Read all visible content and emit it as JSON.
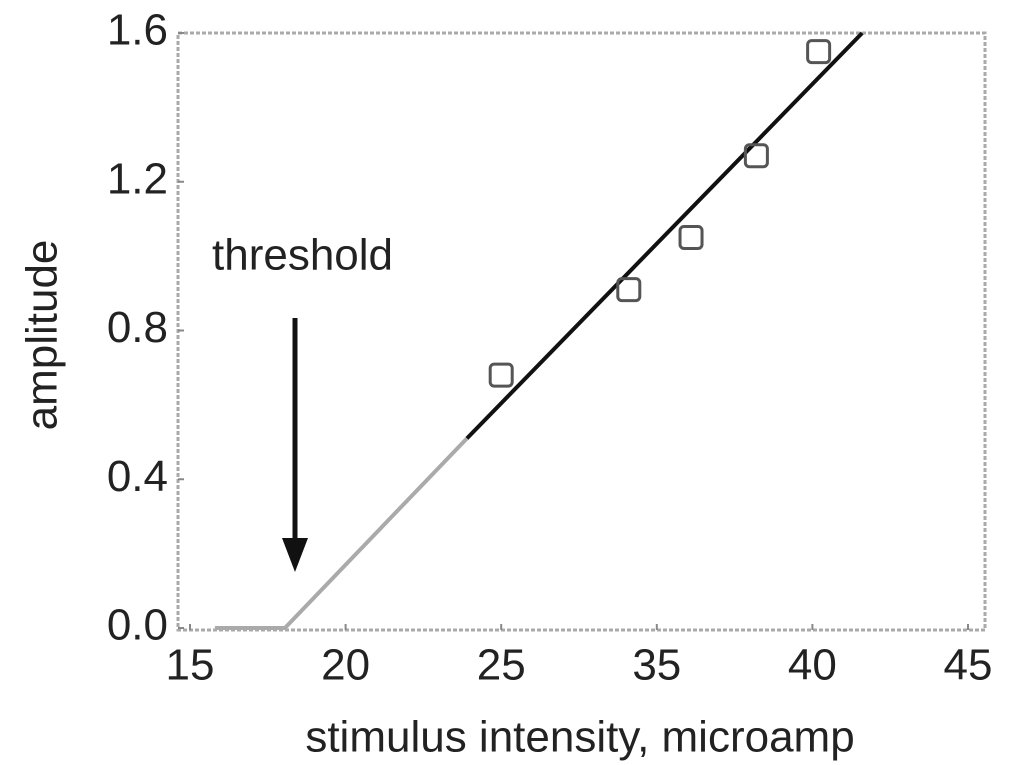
{
  "chart_data": {
    "type": "scatter",
    "xlabel": "stimulus intensity, microamp",
    "ylabel": "amplitude",
    "annotation": "threshold",
    "xlim": [
      14.6,
      45.5
    ],
    "ylim": [
      0,
      1.6
    ],
    "xticks": [
      15,
      20,
      25,
      35,
      40,
      45
    ],
    "yticks": [
      {
        "value": 0,
        "label": "0.0"
      },
      {
        "value": 0.4,
        "label": "0.4"
      },
      {
        "value": 0.8,
        "label": "0.8"
      },
      {
        "value": 1.2,
        "label": "1.2"
      },
      {
        "value": 1.6,
        "label": "1.6"
      }
    ],
    "points": {
      "x": [
        25.0,
        33.2,
        36.1,
        38.2,
        40.2
      ],
      "values": [
        0.68,
        0.91,
        1.05,
        1.27,
        1.55
      ],
      "color": "#555555"
    },
    "lines": [
      {
        "x": [
          15.8,
          18.05,
          23.9
        ],
        "values": [
          0,
          0,
          0.51
        ],
        "color": "#aaaaaa"
      },
      {
        "x": [
          23.9,
          41.6
        ],
        "values": [
          0.51,
          1.6
        ],
        "color": "#111111"
      }
    ]
  }
}
